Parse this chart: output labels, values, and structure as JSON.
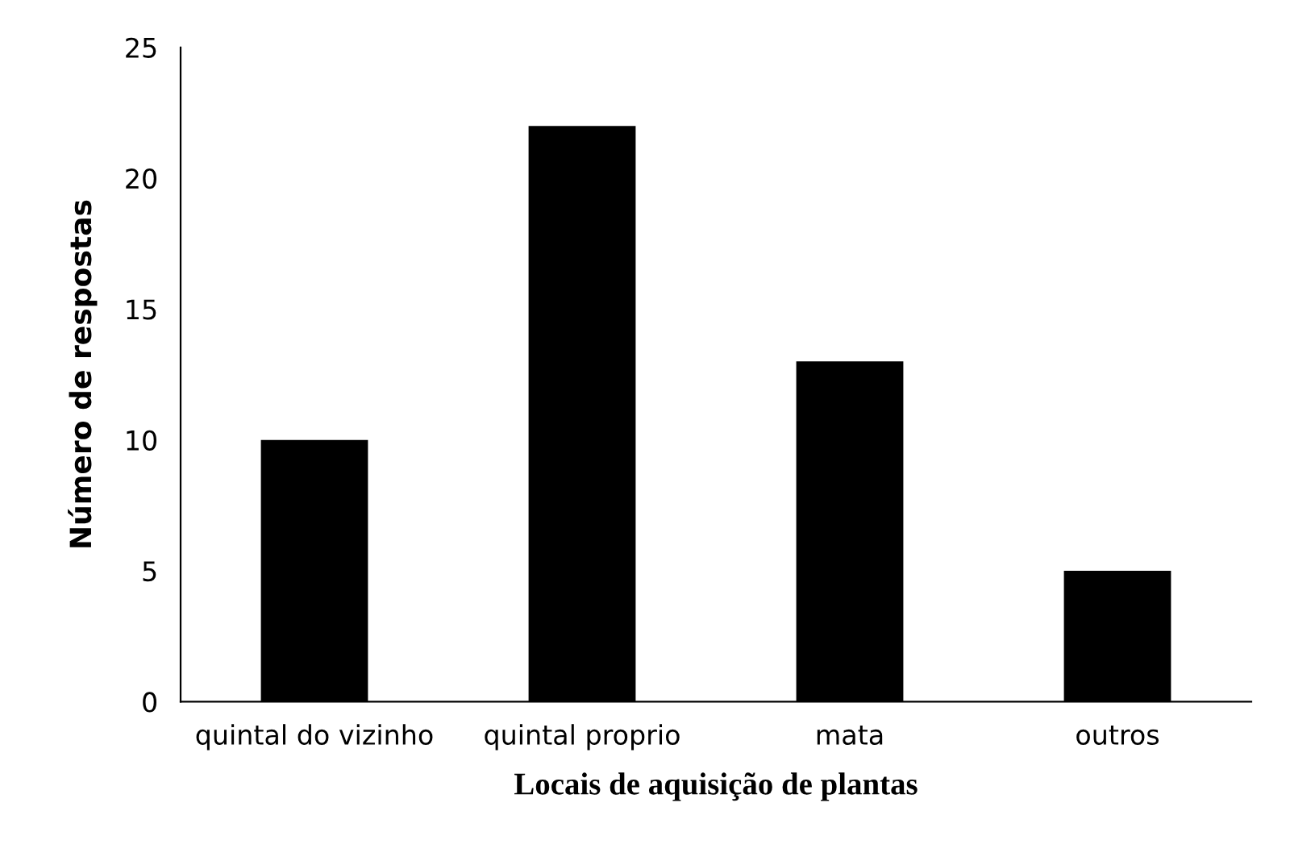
{
  "chart_data": {
    "type": "bar",
    "xlabel": "Locais de aquisição de plantas",
    "ylabel": "Número de respostas",
    "categories": [
      "quintal do vizinho",
      "quintal proprio",
      "mata",
      "outros"
    ],
    "values": [
      10,
      22,
      13,
      5
    ],
    "color": "#000000",
    "ylim": [
      0,
      25
    ],
    "yticks": [
      0,
      5,
      10,
      15,
      20,
      25
    ],
    "grid": false,
    "legend": false
  }
}
